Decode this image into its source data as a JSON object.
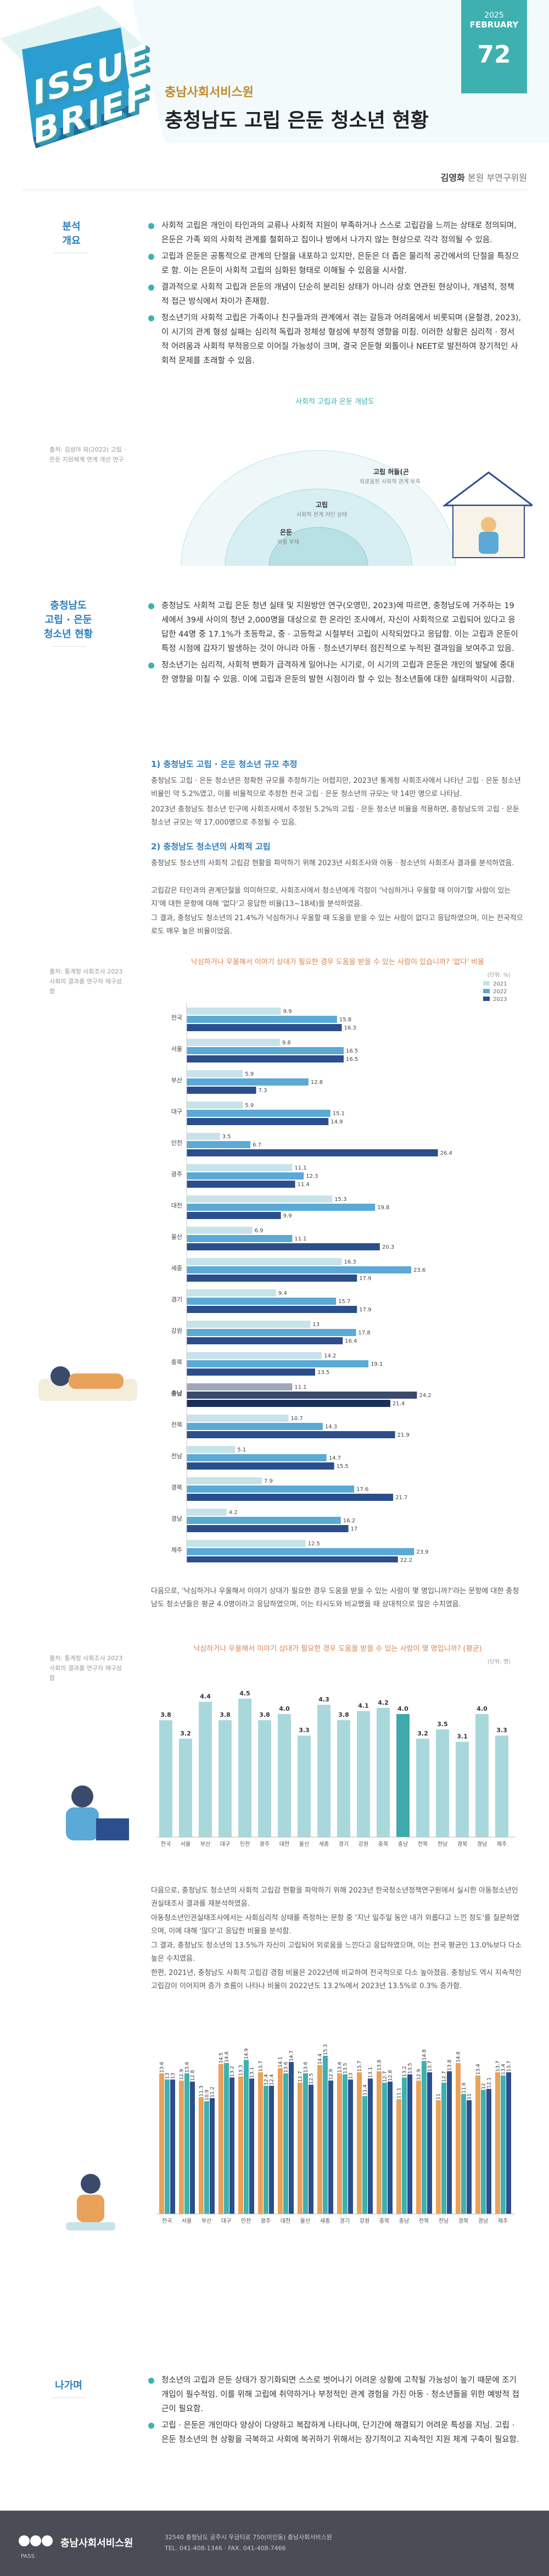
{
  "header": {
    "logo_line1": "ISSUE",
    "logo_line2": "BRIEF",
    "year": "2025",
    "month": "FEBRUARY",
    "issue_no": "72",
    "org": "충남사회서비스원",
    "title": "충청남도 고립 은둔 청소년 현황",
    "author_name": "김영화",
    "author_role": "본원 부연구위원"
  },
  "colors": {
    "teal": "#3fb0b0",
    "blue": "#2b7fbe",
    "orange": "#d9844d",
    "bar_light": "#a9d8dc",
    "bar_dark": "#3a4a6b",
    "bar_2021": "#c7e3ea",
    "bar_2022": "#5aa9d6",
    "bar_2023": "#2b4e8c"
  },
  "section1": {
    "label_line1": "분석",
    "label_line2": "개요",
    "bullets": [
      "사회적 고립은 개인이 타인과의 교류나 사회적 지원이 부족하거나 스스로 고립감을 느끼는 상태로 정의되며, 은둔은 가족 외의 사회적 관계를 철회하고 집이나 방에서 나가지 않는 현상으로 각각 정의될 수 있음.",
      "고립과 은둔은 공통적으로 관계의 단절을 내포하고 있지만, 은둔은 더 좁은 물리적 공간에서의 단절을 특징으로 함. 이는 은둔이 사회적 고립의 심화된 형태로 이해될 수 있음을 시사함.",
      "결과적으로 사회적 고립과 은둔의 개념이 단순히 분리된 상태가 아니라 상호 연관된 현상이나, 개념적, 정책적 접근 방식에서 차이가 존재함.",
      "청소년기의 사회적 고립은 가족이나 친구들과의 관계에서 겪는 갈등과 어려움에서 비롯되며 (윤철경, 2023), 이 시기의 관계 형성 실패는 심리적 독립과 정체성 형성에 부정적 영향을 미침. 이러한 상황은 심리적 · 정서적 어려움과 사회적 부적응으로 이어질 가능성이 크며, 결국 은둔형 외톨이나 NEET로 발전하여 장기적인 사회적 문제를 초래할 수 있음."
    ],
    "diagram_title": "사회적 고립과 은둔 개념도",
    "diagram_outer": "고립 허들(곤",
    "diagram_outer_sub": "외로움된 사회적 관계 부족",
    "diagram_mid": "고립",
    "diagram_mid_sub": "사회적 관계 차단 상태",
    "diagram_inner": "은둔",
    "diagram_inner_sub": "외출 부재",
    "note": "출처: 김성아 외(2022) 고립 · 은둔 지원체계 연계 개선 연구"
  },
  "section2": {
    "label_line1": "충청남도",
    "label_line2": "고립 · 은둔",
    "label_line3": "청소년 현황",
    "bullets": [
      "충청남도 사회적 고립 은둔 청년 실태 및 지원방안 연구(오영민, 2023)에 따르면, 충청남도에 거주하는 19세에서 39세 사이의 청년 2,000명을 대상으로 한 온라인 조사에서, 자신이 사회적으로 고립되어 있다고 응답한 44명 중 17.1%가 초등학교, 중 · 고등학교 시절부터 고립이 시작되었다고 응답함. 이는 고립과 은둔이 특정 시점에 갑자기 발생하는 것이 아니라 아동 · 청소년기부터 점진적으로 누적된 결과임을 보여주고 있음.",
      "청소년기는 심리적, 사회적 변화가 급격하게 일어나는 시기로, 이 시기의 고립과 은둔은 개인의 발달에 중대한 영향을 미칠 수 있음. 이에 고립과 은둔의 발현 시점이라 할 수 있는 청소년들에 대한 실태파악이 시급함."
    ],
    "sub1_title": "1) 충청남도 고립 · 은둔 청소년 규모 추정",
    "sub1_para": "충청남도 고립 · 은둔 청소년은 정확한 규모를 추정하기는 어렵지만, 2023년 통계청 사회조사에서 나타난 고립 · 은둔 청소년 비율인 약 5.2%였고, 이를 비율적으로 추정한 전국 고립 · 은둔 청소년의 규모는 약 14만 명으로 나타남.",
    "sub1_para2": "2023년 충청남도 청소년 인구에 사회조사에서 추정된 5.2%의 고립 · 은둔 청소년 비율을 적용하면, 충청남도의 고립 · 은둔 청소년 규모는 약 17,000명으로 추정될 수 있음.",
    "sub2_title": "2) 충청남도 청소년의 사회적 고립",
    "sub2_para": "충청남도 청소년의 사회적 고립감 현황을 파악하기 위해 2023년 사회조사와 아동 · 청소년의 사회조사 결과를 분석하였음.",
    "sub2_para2": "고립감은 타인과의 관계단절을 의미하므로, 사회조사에서 청소년에게 걱정이 '낙심하거나 우울할 때 이야기할 사람이 있는지'에 대한 문항에 대해 '없다'고 응답한 비율(13~18세)을 분석하였음.",
    "sub2_para3": "그 결과, 충청남도 청소년의 21.4%가 낙심하거나 우울할 때 도움을 받을 수 있는 사람이 없다고 응답하였으며, 이는 전국적으로도 매우 높은 비율이었음.",
    "note1": "출처: 통계청 사회조사 2023 사회의 결과를 연구자 재구성함",
    "chart1_title": "낙심하거나 우울해서 이야기 상대가 필요한 경우 도움을 받을 수 있는 사람이 있습니까? '없다' 비율",
    "para_after1": "다음으로, '낙심하거나 우울해서 이야기 상대가 필요한 경우 도움을 받을 수 있는 사람이 몇 명입니까?'라는 문항에 대한 충청남도 청소년들은 평균 4.0명이라고 응답하였으며, 이는 타시도와 비교했을 때 상대적으로 많은 수치였음.",
    "note2": "출처: 통계청 사회조사 2023 사회의 결과를 연구자 재구성함",
    "chart2_title": "낙심하거나 우울해서 이야기 상대가 필요한 경우 도움을 받을 수 있는 사람이 몇 명입니까? (평균)",
    "para_after2": "다음으로, 충청남도 청소년의 사회적 고립감 현황을 파악하기 위해 2023년 한국청소년정책연구원에서 실시한 아동청소년인권실태조사 결과를 재분석하였음.",
    "para_after2b": "아동청소년인권실태조사에서는 사회심리적 상태를 측정하는 문항 중 '지난 일주일 동안 내가 외롭다고 느낀 정도'를 질문하였으며, 이에 대해 '많다'고 응답한 비율을 분석함.",
    "para_after2c": "그 결과, 충청남도 청소년의 13.5%가 자신이 고립되어 외로움을 느낀다고 응답하였으며, 이는 전국 평균인 13.0%보다 다소 높은 수치였음.",
    "para_after2d": "한편, 2021년, 충청남도 사회적 고립감 경험 비율은 2022년에 비교하여 전국적으로 다소 높아졌음. 충청남도 역시 지속적인 고립감이 이어지며 증가 흐름이 나타나 비율이 2022년도 13.2%에서 2023년 13.5%로 0.3% 증가함."
  },
  "section3": {
    "label": "나가며",
    "bullets": [
      "청소년의 고립과 은둔 상태가 장기화되면 스스로 벗어나기 어려운 상황에 고착될 가능성이 높기 때문에 조기 개입이 필수적임. 이를 위해 고립에 취약하거나 부정적인 관계 경험을 가진 아동 · 청소년들을 위한 예방적 접근이 필요함.",
      "고립 · 은둔은 개인마다 양상이 다양하고 복잡하게 나타나며, 단기간에 해결되기 어려운 특성을 지님. 고립 · 은둔 청소년의 현 상황을 극복하고 사회에 복귀하기 위해서는 장기적이고 지속적인 지원 체계 구축이 필요함."
    ]
  },
  "chart_data": [
    {
      "type": "bar",
      "title": "낙심하거나 우울해서 이야기 상대가 필요한 경우 도움을 받을 수 있는 사람이 있습니까? '없다' 비율",
      "unit": "(단위: %)",
      "orientation": "horizontal",
      "categories": [
        "전국",
        "서울",
        "부산",
        "대구",
        "인천",
        "광주",
        "대전",
        "울산",
        "세종",
        "경기",
        "강원",
        "충북",
        "충남",
        "전북",
        "전남",
        "경북",
        "경남",
        "제주"
      ],
      "series": [
        {
          "name": "2021",
          "values": [
            9.9,
            9.8,
            5.9,
            5.9,
            3.5,
            11.1,
            15.3,
            6.9,
            16.3,
            9.4,
            13.0,
            14.2,
            11.1,
            10.7,
            5.1,
            7.9,
            4.2,
            12.5
          ]
        },
        {
          "name": "2022",
          "values": [
            15.8,
            16.5,
            12.8,
            15.1,
            6.7,
            12.3,
            19.8,
            11.1,
            23.6,
            15.7,
            17.8,
            19.1,
            24.2,
            14.3,
            14.7,
            17.6,
            16.2,
            23.9
          ]
        },
        {
          "name": "2023",
          "values": [
            16.3,
            16.5,
            7.3,
            14.9,
            26.4,
            11.4,
            9.9,
            20.3,
            17.9,
            17.9,
            16.4,
            13.5,
            21.4,
            21.9,
            15.5,
            21.7,
            17.0,
            22.2
          ]
        }
      ],
      "legend": "top-right"
    },
    {
      "type": "bar",
      "title": "낙심하거나 우울해서 이야기 상대가 필요한 경우 도움을 받을 수 있는 사람이 몇 명입니까? (평균)",
      "unit": "(단위: 명)",
      "categories": [
        "전국",
        "서울",
        "부산",
        "대구",
        "인천",
        "광주",
        "대전",
        "울산",
        "세종",
        "경기",
        "강원",
        "충북",
        "충남",
        "전북",
        "전남",
        "경북",
        "경남",
        "제주"
      ],
      "values": [
        3.8,
        3.2,
        4.4,
        3.8,
        4.5,
        3.8,
        4.0,
        3.3,
        4.3,
        3.8,
        4.1,
        4.2,
        4.0,
        3.2,
        3.5,
        3.1,
        4.0,
        3.3
      ],
      "highlight": "충남"
    },
    {
      "type": "bar",
      "title": "",
      "categories": [
        "전국",
        "서울",
        "부산",
        "대구",
        "인천",
        "광주",
        "대전",
        "울산",
        "세종",
        "경기",
        "강원",
        "충북",
        "충남",
        "전북",
        "전남",
        "경북",
        "경남",
        "제주"
      ],
      "series": [
        {
          "name": "2021",
          "values": [
            13.6,
            12.9,
            11.3,
            14.5,
            13.3,
            13.7,
            14.1,
            12.7,
            14.4,
            13.6,
            13.7,
            13.8,
            11.1,
            12.9,
            11.0,
            14.6,
            13.4,
            13.7
          ]
        },
        {
          "name": "2022",
          "values": [
            13.0,
            13.6,
            10.9,
            14.6,
            14.9,
            12.4,
            13.6,
            13.6,
            15.3,
            13.5,
            11.4,
            12.7,
            13.2,
            14.8,
            12.7,
            11.6,
            12.0,
            13.4
          ]
        },
        {
          "name": "2023",
          "values": [
            13.0,
            12.8,
            11.2,
            13.2,
            13.1,
            12.4,
            14.7,
            12.5,
            12.9,
            13.0,
            13.1,
            12.8,
            13.5,
            13.7,
            13.8,
            11.0,
            12.1,
            13.7
          ]
        }
      ]
    }
  ],
  "footer": {
    "org": "충남사회서비스원",
    "logo_sub": "PASS",
    "address": "32540 충청남도 공주시 우금티로 750(이인동) 충남사회서비스원",
    "contact": "TEL. 041-408-1346 · FAX. 041-408-7466"
  }
}
